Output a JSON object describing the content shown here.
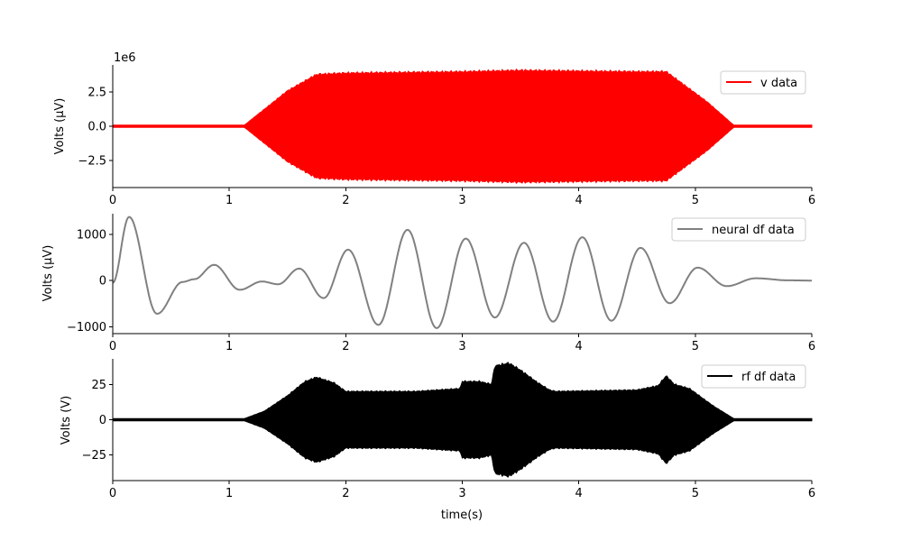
{
  "chart_data": [
    {
      "type": "line",
      "series": [
        {
          "name": "v data",
          "color": "#ff0000"
        }
      ],
      "ylabel": "Volts ($\\mu$V)",
      "ylabel_display": "Volts (μV)",
      "xlim": [
        0,
        6
      ],
      "ylim": [
        -4.5,
        4.5
      ],
      "y_scale_label": "1e6",
      "xticks": [
        "0",
        "1",
        "2",
        "3",
        "4",
        "5",
        "6"
      ],
      "yticks": [
        {
          "value": 2.5,
          "label": "2.5"
        },
        {
          "value": 0,
          "label": "0.0"
        },
        {
          "value": -2.5,
          "label": "−2.5"
        }
      ],
      "envelope": [
        {
          "t": 0.0,
          "amp": 0.08
        },
        {
          "t": 1.13,
          "amp": 0.08
        },
        {
          "t": 1.5,
          "amp": 2.6
        },
        {
          "t": 1.75,
          "amp": 3.8
        },
        {
          "t": 2.0,
          "amp": 3.9
        },
        {
          "t": 3.0,
          "amp": 4.0
        },
        {
          "t": 3.5,
          "amp": 4.1
        },
        {
          "t": 4.0,
          "amp": 4.05
        },
        {
          "t": 4.5,
          "amp": 4.0
        },
        {
          "t": 4.75,
          "amp": 4.0
        },
        {
          "t": 5.1,
          "amp": 1.8
        },
        {
          "t": 5.33,
          "amp": 0.08
        },
        {
          "t": 6.0,
          "amp": 0.08
        }
      ],
      "legend_position": "upper right"
    },
    {
      "type": "line",
      "series": [
        {
          "name": "neural df data",
          "color": "#808080"
        }
      ],
      "ylabel": "Volts ($\\mu$V)",
      "ylabel_display": "Volts (μV)",
      "xlim": [
        0,
        6
      ],
      "ylim": [
        -1150,
        1450
      ],
      "xticks": [
        "0",
        "1",
        "2",
        "3",
        "4",
        "5",
        "6"
      ],
      "yticks": [
        {
          "value": 1000,
          "label": "1000"
        },
        {
          "value": 0,
          "label": "0"
        },
        {
          "value": -1000,
          "label": "−1000"
        }
      ],
      "points": [
        {
          "t": 0.0,
          "v": -50
        },
        {
          "t": 0.14,
          "v": 1380
        },
        {
          "t": 0.38,
          "v": -720
        },
        {
          "t": 0.6,
          "v": -30
        },
        {
          "t": 0.7,
          "v": 30
        },
        {
          "t": 0.87,
          "v": 340
        },
        {
          "t": 1.09,
          "v": -200
        },
        {
          "t": 1.28,
          "v": -20
        },
        {
          "t": 1.42,
          "v": -80
        },
        {
          "t": 1.6,
          "v": 260
        },
        {
          "t": 1.81,
          "v": -380
        },
        {
          "t": 2.02,
          "v": 670
        },
        {
          "t": 2.28,
          "v": -960
        },
        {
          "t": 2.53,
          "v": 1100
        },
        {
          "t": 2.78,
          "v": -1030
        },
        {
          "t": 3.03,
          "v": 910
        },
        {
          "t": 3.28,
          "v": -800
        },
        {
          "t": 3.53,
          "v": 820
        },
        {
          "t": 3.78,
          "v": -890
        },
        {
          "t": 4.03,
          "v": 940
        },
        {
          "t": 4.28,
          "v": -870
        },
        {
          "t": 4.53,
          "v": 710
        },
        {
          "t": 4.78,
          "v": -490
        },
        {
          "t": 5.02,
          "v": 280
        },
        {
          "t": 5.27,
          "v": -120
        },
        {
          "t": 5.52,
          "v": 50
        },
        {
          "t": 5.8,
          "v": 5
        },
        {
          "t": 6.0,
          "v": 0
        }
      ],
      "legend_position": "upper right"
    },
    {
      "type": "line",
      "series": [
        {
          "name": "rf df data",
          "color": "#000000"
        }
      ],
      "ylabel": "Volts (V)",
      "xlabel": "time(s)",
      "xlim": [
        0,
        6
      ],
      "ylim": [
        -43,
        43
      ],
      "xticks": [
        "0",
        "1",
        "2",
        "3",
        "4",
        "5",
        "6"
      ],
      "yticks": [
        {
          "value": 25,
          "label": "25"
        },
        {
          "value": 0,
          "label": "0"
        },
        {
          "value": -25,
          "label": "−25"
        }
      ],
      "envelope": [
        {
          "t": 0.0,
          "amp": 0.8
        },
        {
          "t": 1.13,
          "amp": 0.8
        },
        {
          "t": 1.3,
          "amp": 6
        },
        {
          "t": 1.5,
          "amp": 17
        },
        {
          "t": 1.65,
          "amp": 27
        },
        {
          "t": 1.75,
          "amp": 30
        },
        {
          "t": 1.9,
          "amp": 26
        },
        {
          "t": 2.0,
          "amp": 20
        },
        {
          "t": 2.6,
          "amp": 20
        },
        {
          "t": 2.98,
          "amp": 22
        },
        {
          "t": 3.0,
          "amp": 27
        },
        {
          "t": 3.15,
          "amp": 27
        },
        {
          "t": 3.25,
          "amp": 25
        },
        {
          "t": 3.28,
          "amp": 38
        },
        {
          "t": 3.4,
          "amp": 40
        },
        {
          "t": 3.5,
          "amp": 35
        },
        {
          "t": 3.65,
          "amp": 26
        },
        {
          "t": 3.75,
          "amp": 21
        },
        {
          "t": 3.8,
          "amp": 20
        },
        {
          "t": 4.5,
          "amp": 21
        },
        {
          "t": 4.68,
          "amp": 24
        },
        {
          "t": 4.75,
          "amp": 31
        },
        {
          "t": 4.82,
          "amp": 25
        },
        {
          "t": 4.95,
          "amp": 22
        },
        {
          "t": 5.15,
          "amp": 10
        },
        {
          "t": 5.33,
          "amp": 0.8
        },
        {
          "t": 6.0,
          "amp": 0.8
        }
      ],
      "legend_position": "upper right"
    }
  ]
}
